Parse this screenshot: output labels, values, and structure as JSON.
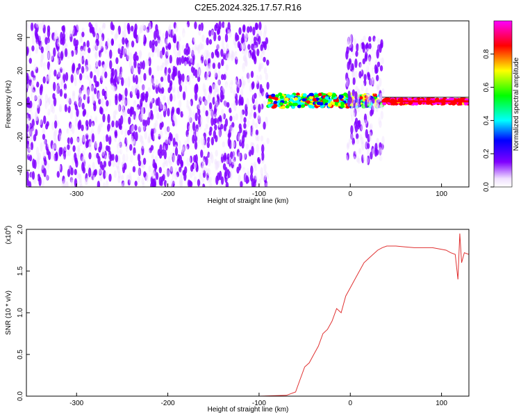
{
  "title": "C2E5.2024.325.17.57.R16",
  "chart_data": [
    {
      "type": "heatmap",
      "title": "C2E5.2024.325.17.57.R16",
      "xlabel": "Height of straight line (km)",
      "ylabel": "Frequency (Hz)",
      "xlim": [
        -355,
        130
      ],
      "ylim": [
        -50,
        50
      ],
      "x_ticks": [
        -300,
        -200,
        -100,
        0,
        100
      ],
      "x_tick_labels": [
        "-300",
        "-200",
        "-100",
        "0",
        "100"
      ],
      "y_ticks": [
        -40,
        -20,
        0,
        20,
        40
      ],
      "y_tick_labels": [
        "-40",
        "-20",
        "0",
        "20",
        "40"
      ],
      "colorbar": {
        "label": "Normalized spectral amplitude",
        "range": [
          0,
          1
        ],
        "ticks": [
          0.0,
          0.2,
          0.4,
          0.6,
          0.8
        ],
        "tick_labels": [
          "0.0",
          "0.2",
          "0.4",
          "0.6",
          "0.8"
        ]
      },
      "regions": [
        {
          "x_range": [
            -355,
            -90
          ],
          "freq_range": [
            -50,
            48
          ],
          "amplitude": "low broadband noise"
        },
        {
          "x_range": [
            -90,
            35
          ],
          "freq_range": [
            -2,
            6
          ],
          "amplitude": "0.2-0.9 narrowband signal"
        },
        {
          "x_range": [
            -4,
            36
          ],
          "freq_range": [
            -35,
            40
          ],
          "amplitude": "low broadband noise"
        },
        {
          "x_range": [
            35,
            130
          ],
          "freq_range": [
            0,
            3
          ],
          "amplitude": "0.5-1.0 carrier line"
        }
      ],
      "grid": false
    },
    {
      "type": "line",
      "xlabel": "Height of straight line (km)",
      "ylabel": "SNR (10 * v/v)",
      "y_scale_label": "(x10",
      "y_scale_exponent": "4",
      "xlim": [
        -355,
        130
      ],
      "ylim": [
        0,
        2.0
      ],
      "x_ticks": [
        -300,
        -200,
        -100,
        0,
        100
      ],
      "x_tick_labels": [
        "-300",
        "-200",
        "-100",
        "0",
        "100"
      ],
      "y_ticks": [
        0.0,
        0.5,
        1.0,
        1.5,
        2.0
      ],
      "y_tick_labels": [
        "0.0",
        "0.5",
        "1.0",
        "1.5",
        "2.0"
      ],
      "line_color": "#e03030",
      "series": [
        {
          "x": [
            -355,
            -300,
            -200,
            -100,
            -70,
            -60,
            -55,
            -50,
            -45,
            -40,
            -35,
            -30,
            -25,
            -20,
            -15,
            -10,
            -5,
            0,
            5,
            10,
            15,
            20,
            25,
            30,
            35,
            40,
            50,
            60,
            70,
            80,
            90,
            100,
            105,
            110,
            115,
            118,
            120,
            122,
            125,
            130
          ],
          "y": [
            0.0,
            0.0,
            0.0,
            0.0,
            0.01,
            0.05,
            0.2,
            0.35,
            0.4,
            0.5,
            0.6,
            0.75,
            0.8,
            0.9,
            1.05,
            1.0,
            1.2,
            1.3,
            1.4,
            1.5,
            1.6,
            1.65,
            1.7,
            1.75,
            1.78,
            1.8,
            1.8,
            1.79,
            1.78,
            1.78,
            1.78,
            1.76,
            1.75,
            1.72,
            1.7,
            1.4,
            1.95,
            1.6,
            1.72,
            1.7
          ]
        }
      ]
    }
  ]
}
